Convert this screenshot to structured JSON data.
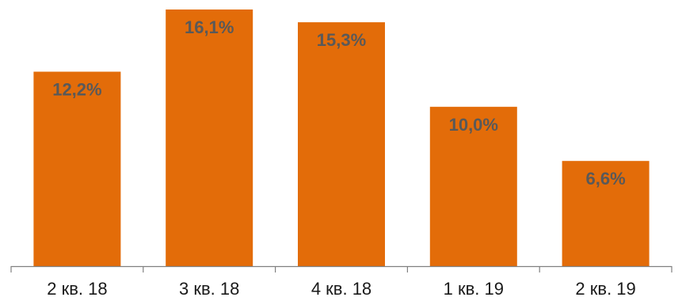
{
  "chart_data": {
    "type": "bar",
    "categories": [
      "2 кв. 18",
      "3 кв. 18",
      "4 кв. 18",
      "1 кв. 19",
      "2 кв. 19"
    ],
    "values": [
      12.2,
      16.1,
      15.3,
      10.0,
      6.6
    ],
    "data_labels": [
      "12,2%",
      "16,1%",
      "15,3%",
      "10,0%",
      "6,6%"
    ],
    "title": "",
    "xlabel": "",
    "ylabel": "",
    "ylim": [
      0,
      16.1
    ],
    "grid": false,
    "legend": "none",
    "colors": {
      "bar": "#E36C09",
      "data_label": "#595959",
      "axis": "#808080",
      "tick_label": "#1a1a1a"
    }
  }
}
